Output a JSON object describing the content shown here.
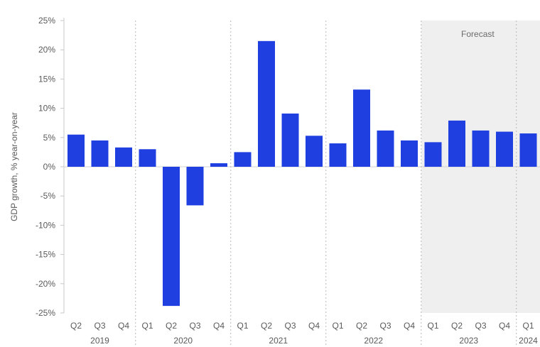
{
  "chart_data": {
    "type": "bar",
    "ylabel": "GDP growth, % year-on-year",
    "ylim": [
      -25,
      25
    ],
    "y_ticks": [
      "25%",
      "20%",
      "15%",
      "10%",
      "5%",
      "0%",
      "-5%",
      "-10%",
      "-15%",
      "-20%",
      "-25%"
    ],
    "y_tick_values": [
      25,
      20,
      15,
      10,
      5,
      0,
      -5,
      -10,
      -15,
      -20,
      -25
    ],
    "bar_color": "#1f3fe0",
    "forecast_shade_color": "#efefef",
    "categories": [
      "Q2",
      "Q3",
      "Q4",
      "Q1",
      "Q2",
      "Q3",
      "Q4",
      "Q1",
      "Q2",
      "Q3",
      "Q4",
      "Q1",
      "Q2",
      "Q3",
      "Q4",
      "Q1",
      "Q2",
      "Q3",
      "Q4",
      "Q1"
    ],
    "values": [
      5.5,
      4.5,
      3.3,
      3.0,
      -23.8,
      -6.6,
      0.6,
      2.5,
      21.5,
      9.1,
      5.3,
      4.0,
      13.2,
      6.2,
      4.5,
      4.2,
      7.9,
      6.2,
      6.0,
      5.7
    ],
    "years": [
      {
        "label": "2019",
        "start": 0,
        "end": 2
      },
      {
        "label": "2020",
        "start": 3,
        "end": 6
      },
      {
        "label": "2021",
        "start": 7,
        "end": 10
      },
      {
        "label": "2022",
        "start": 11,
        "end": 14
      },
      {
        "label": "2023",
        "start": 15,
        "end": 18
      },
      {
        "label": "2024",
        "start": 19,
        "end": 19
      }
    ],
    "forecast_start_index": 15,
    "forecast_label": "Forecast",
    "grid": false
  }
}
